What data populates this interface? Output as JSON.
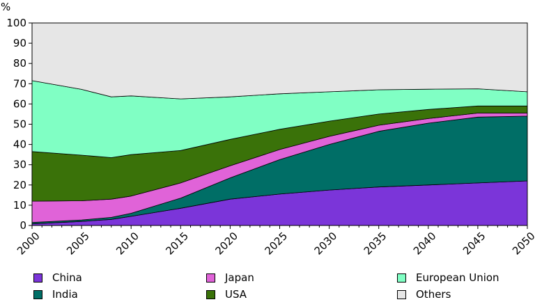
{
  "chart_data": {
    "type": "area",
    "stacked": true,
    "ylabel": "%",
    "ylim": [
      0,
      100
    ],
    "yticks": [
      "0",
      "10",
      "20",
      "30",
      "40",
      "50",
      "60",
      "70",
      "80",
      "90",
      "100"
    ],
    "xticks": [
      "2000",
      "2005",
      "2010",
      "2015",
      "2020",
      "2025",
      "2030",
      "2035",
      "2040",
      "2045",
      "2050"
    ],
    "x": [
      2000,
      2005,
      2008,
      2010,
      2015,
      2020,
      2025,
      2030,
      2035,
      2040,
      2045,
      2050
    ],
    "series": [
      {
        "name": "China",
        "color": "#7b35d9",
        "values": [
          0.8,
          2.0,
          3.0,
          4.5,
          8.5,
          13.0,
          15.5,
          17.5,
          19.0,
          20.0,
          21.0,
          22.0
        ]
      },
      {
        "name": "India",
        "color": "#006e66",
        "values": [
          0.7,
          0.7,
          1.0,
          1.5,
          5.0,
          10.5,
          17.0,
          22.5,
          27.5,
          30.5,
          32.5,
          32.0
        ]
      },
      {
        "name": "Japan",
        "color": "#e063d8",
        "values": [
          10.5,
          9.5,
          9.0,
          8.5,
          7.5,
          6.0,
          5.0,
          4.0,
          3.0,
          2.3,
          2.0,
          1.5
        ]
      },
      {
        "name": "USA",
        "color": "#3a7209",
        "values": [
          24.5,
          22.5,
          20.5,
          20.5,
          16.0,
          13.0,
          10.0,
          7.5,
          5.5,
          4.5,
          3.5,
          3.5
        ]
      },
      {
        "name": "European Union",
        "color": "#80ffc4",
        "values": [
          35.0,
          32.5,
          30.0,
          29.0,
          25.5,
          21.0,
          17.5,
          14.5,
          12.0,
          10.0,
          8.5,
          7.0
        ]
      },
      {
        "name": "Others",
        "color": "#e6e6e6",
        "values": [
          28.5,
          32.8,
          36.5,
          36.0,
          37.5,
          36.5,
          35.0,
          34.0,
          33.0,
          32.7,
          32.5,
          34.0
        ]
      }
    ],
    "legend_position": "bottom",
    "grid": false
  }
}
